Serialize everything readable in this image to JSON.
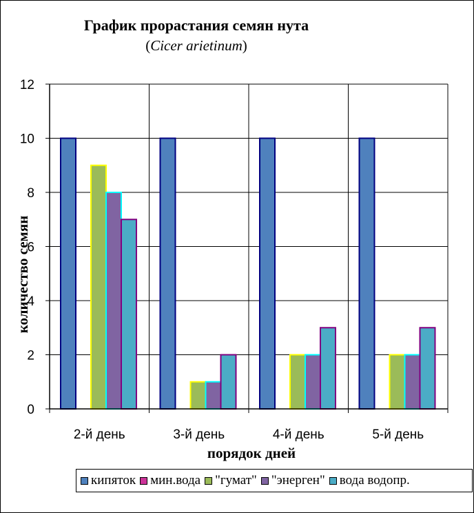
{
  "chart_data": {
    "type": "bar",
    "title": "График прорастания семян нута",
    "subtitle_open": "(",
    "subtitle_italic": "Cicer arietinum",
    "subtitle_close": ")",
    "xlabel": "порядок дней",
    "ylabel": "количество семян",
    "categories": [
      "2-й день",
      "3-й день",
      "4-й день",
      "5-й день"
    ],
    "yticks": [
      "0",
      "2",
      "4",
      "6",
      "8",
      "10",
      "12"
    ],
    "ylim": [
      0,
      12
    ],
    "grid": "horizontal and vertical",
    "legend_position": "bottom",
    "series": [
      {
        "name": "кипяток",
        "values": [
          10,
          10,
          10,
          10
        ],
        "color": "#4F81BD",
        "edge": "#000080"
      },
      {
        "name": "мин.вода",
        "values": [
          0,
          0,
          0,
          0
        ],
        "color": "#CC3399",
        "edge": "#FF00FF"
      },
      {
        "name": "\"гумат\"",
        "values": [
          9,
          1,
          2,
          2
        ],
        "color": "#9BBB59",
        "edge": "#FFFF00"
      },
      {
        "name": "\"энерген\"",
        "values": [
          8,
          1,
          2,
          2
        ],
        "color": "#8064A2",
        "edge": "#00FFFF"
      },
      {
        "name": "вода водопр.",
        "values": [
          7,
          2,
          3,
          3
        ],
        "color": "#4BACC6",
        "edge": "#800080"
      }
    ]
  }
}
